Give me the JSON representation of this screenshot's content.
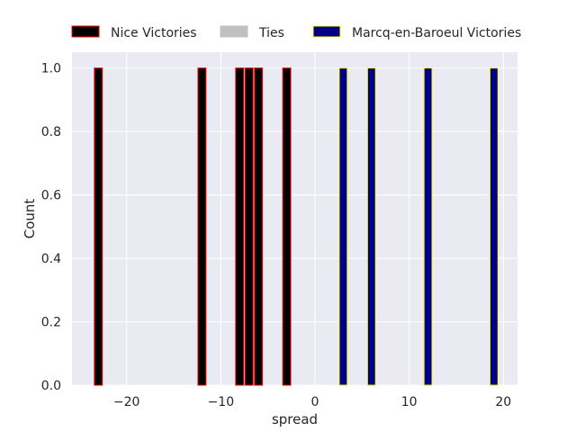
{
  "chart_data": {
    "type": "bar",
    "xlabel": "spread",
    "ylabel": "Count",
    "xlim": [
      -25.8,
      21.5
    ],
    "ylim": [
      0,
      1.05
    ],
    "xticks": [
      -20,
      -10,
      0,
      10,
      20
    ],
    "xtick_labels": [
      "−20",
      "−10",
      "0",
      "10",
      "20"
    ],
    "yticks": [
      0.0,
      0.2,
      0.4,
      0.6,
      0.8,
      1.0
    ],
    "ytick_labels": [
      "0.0",
      "0.2",
      "0.4",
      "0.6",
      "0.8",
      "1.0"
    ],
    "grid": true,
    "background": "#eaeaf2",
    "grid_color": "#ffffff",
    "legend_position": "top",
    "bin_width": 0.85,
    "series": [
      {
        "name": "Nice Victories",
        "fill": "#000000",
        "edge": "#ff0000",
        "x": [
          -23,
          -12,
          -8,
          -7,
          -6,
          -3
        ],
        "values": [
          1,
          1,
          1,
          1,
          1,
          1
        ]
      },
      {
        "name": "Ties",
        "fill": "#c0c0c0",
        "edge": "#c0c0c0",
        "x": [],
        "values": []
      },
      {
        "name": "Marcq-en-Baroeul Victories",
        "fill": "#00008b",
        "edge": "#ffff00",
        "x": [
          3,
          6,
          12,
          19
        ],
        "values": [
          1,
          1,
          1,
          1
        ]
      }
    ]
  }
}
